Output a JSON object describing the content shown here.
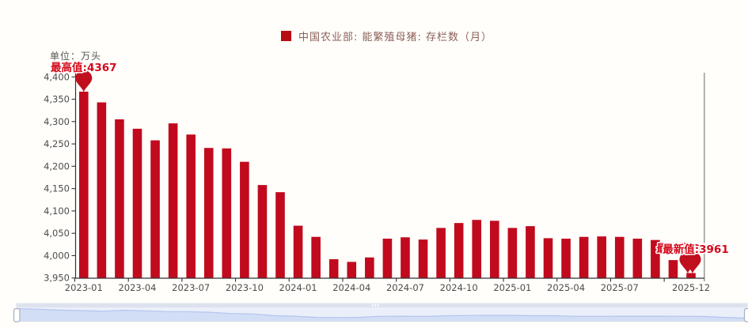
{
  "unit_label": "单位：万头",
  "legend": {
    "label": "中国农业部: 能繁殖母猪: 存栏数（月）"
  },
  "annotations": {
    "max": {
      "label": "最高值:4367",
      "value": 4367,
      "category": "2023-01"
    },
    "lowest": {
      "label": "最低值:3961",
      "value": 3961,
      "category": "2025-12"
    },
    "latest": {
      "label": "最新值:3961",
      "value": 3961,
      "category": "2025-12"
    }
  },
  "chart_data": {
    "type": "bar",
    "title": "中国农业部: 能繁殖母猪: 存栏数（月）",
    "ylabel": "万头",
    "ylim": [
      3950,
      4400
    ],
    "grid": false,
    "legend_position": "top-center",
    "categories": [
      "2023-01",
      "2023-02",
      "2023-03",
      "2023-04",
      "2023-05",
      "2023-06",
      "2023-07",
      "2023-08",
      "2023-09",
      "2023-10",
      "2023-11",
      "2023-12",
      "2024-01",
      "2024-02",
      "2024-03",
      "2024-04",
      "2024-05",
      "2024-06",
      "2024-07",
      "2024-08",
      "2024-09",
      "2024-10",
      "2024-11",
      "2024-12",
      "2025-01",
      "2025-02",
      "2025-03",
      "2025-04",
      "2025-05",
      "2025-06",
      "2025-07",
      "2025-08",
      "2025-09",
      "2025-10",
      "2025-12"
    ],
    "values": [
      4367,
      4343,
      4305,
      4284,
      4258,
      4296,
      4271,
      4241,
      4240,
      4210,
      4158,
      4142,
      4067,
      4042,
      3992,
      3986,
      3996,
      4038,
      4041,
      4036,
      4062,
      4073,
      4080,
      4078,
      4062,
      4066,
      4039,
      4038,
      4042,
      4043,
      4042,
      4038,
      4035,
      3990,
      3961
    ],
    "y_ticks": [
      "4,400",
      "4,350",
      "4,300",
      "4,250",
      "4,200",
      "4,150",
      "4,100",
      "4,050",
      "4,000",
      "3,950"
    ],
    "x_tick_labels": [
      "2023-01",
      "2023-04",
      "2023-07",
      "2023-10",
      "2024-01",
      "2024-04",
      "2024-07",
      "2024-10",
      "2025-01",
      "2025-04",
      "2025-07",
      "2025-12"
    ]
  },
  "colors": {
    "bar": "#c10a1e",
    "pin": "#c0101e",
    "annotation_text": "#d40a1a",
    "axis_line": "#333333",
    "axis_text": "#4c4c4c",
    "legend_text": "#8c5f5a",
    "legend_marker": "#b50d12",
    "pointer_line": "#8a8a8a",
    "slider_track": "#dde2ee",
    "slider_grip": "#ffffff",
    "slider_bg": "#eaeffa",
    "slider_area_fill": "#cfdcf5",
    "slider_area_line": "#b3c4ec",
    "slider_handle_border": "#a6aebf",
    "background": "#fffefa"
  }
}
